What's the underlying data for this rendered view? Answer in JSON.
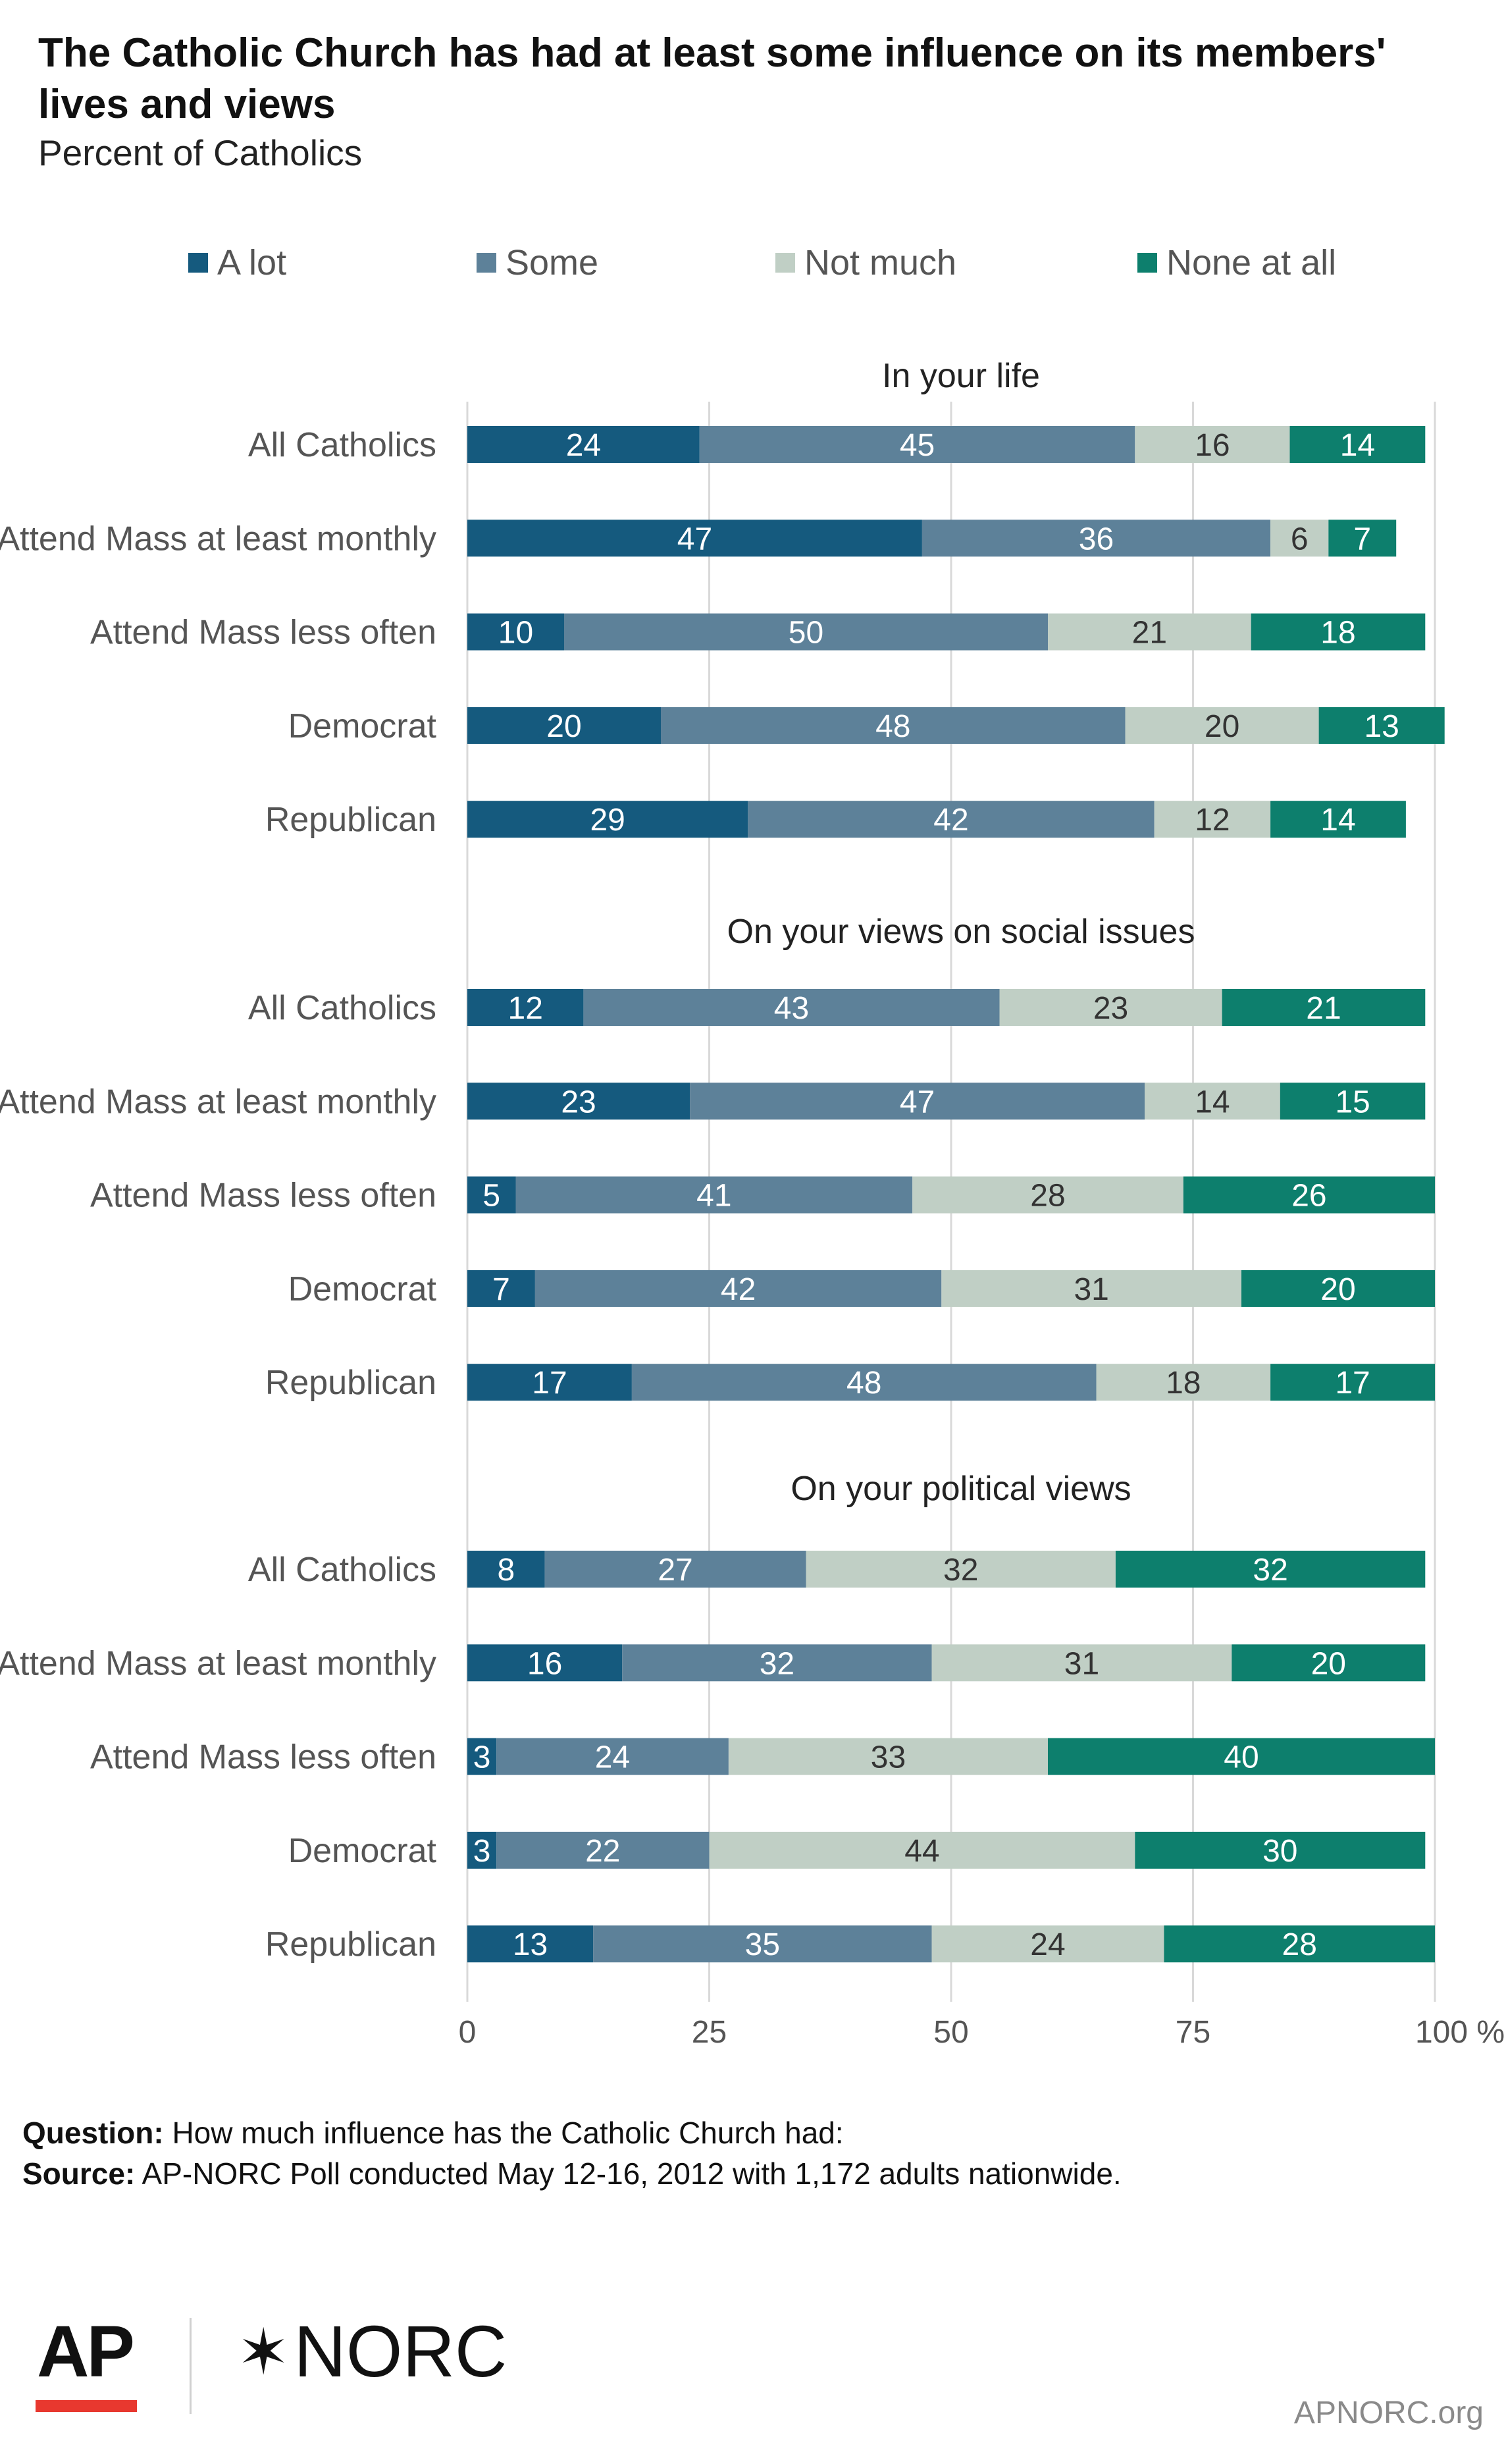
{
  "title": "The Catholic Church has had at least some influence on its members' lives and views",
  "subtitle": "Percent of Catholics",
  "legend": [
    {
      "label": "A lot",
      "color": "#155a7e"
    },
    {
      "label": "Some",
      "color": "#5d8199"
    },
    {
      "label": "Not much",
      "color": "#c0cfc5"
    },
    {
      "label": "None at all",
      "color": "#0d7f6d"
    }
  ],
  "chart_data": {
    "type": "bar",
    "orientation": "horizontal",
    "stacked": true,
    "xlim": [
      0,
      100
    ],
    "x_ticks": [
      "0",
      "25",
      "50",
      "75",
      "100 %"
    ],
    "grid": true,
    "legend_position": "top",
    "series_names": [
      "A lot",
      "Some",
      "Not much",
      "None at all"
    ],
    "groups": [
      {
        "title": "In your life",
        "rows": [
          {
            "label": "All Catholics",
            "values": [
              24,
              45,
              16,
              14
            ]
          },
          {
            "label": "Attend Mass at least monthly",
            "values": [
              47,
              36,
              6,
              7
            ]
          },
          {
            "label": "Attend Mass less often",
            "values": [
              10,
              50,
              21,
              18
            ]
          },
          {
            "label": "Democrat",
            "values": [
              20,
              48,
              20,
              13
            ]
          },
          {
            "label": "Republican",
            "values": [
              29,
              42,
              12,
              14
            ]
          }
        ]
      },
      {
        "title": "On your views on social issues",
        "rows": [
          {
            "label": "All Catholics",
            "values": [
              12,
              43,
              23,
              21
            ]
          },
          {
            "label": "Attend Mass at least monthly",
            "values": [
              23,
              47,
              14,
              15
            ]
          },
          {
            "label": "Attend Mass less often",
            "values": [
              5,
              41,
              28,
              26
            ]
          },
          {
            "label": "Democrat",
            "values": [
              7,
              42,
              31,
              20
            ]
          },
          {
            "label": "Republican",
            "values": [
              17,
              48,
              18,
              17
            ]
          }
        ]
      },
      {
        "title": "On your political views",
        "rows": [
          {
            "label": "All Catholics",
            "values": [
              8,
              27,
              32,
              32
            ]
          },
          {
            "label": "Attend Mass at least monthly",
            "values": [
              16,
              32,
              31,
              20
            ]
          },
          {
            "label": "Attend Mass less often",
            "values": [
              3,
              24,
              33,
              40
            ]
          },
          {
            "label": "Democrat",
            "values": [
              3,
              22,
              44,
              30
            ]
          },
          {
            "label": "Republican",
            "values": [
              13,
              35,
              24,
              28
            ]
          }
        ]
      }
    ]
  },
  "footer": {
    "question_label": "Question:",
    "question_text": "How much influence has the Catholic Church had:",
    "source_label": "Source:",
    "source_text": "AP-NORC Poll conducted May 12-16, 2012 with 1,172 adults nationwide."
  },
  "logos": {
    "ap": "AP",
    "norc": "NORC",
    "norc_mark": "✶"
  },
  "site": "APNORC.org"
}
